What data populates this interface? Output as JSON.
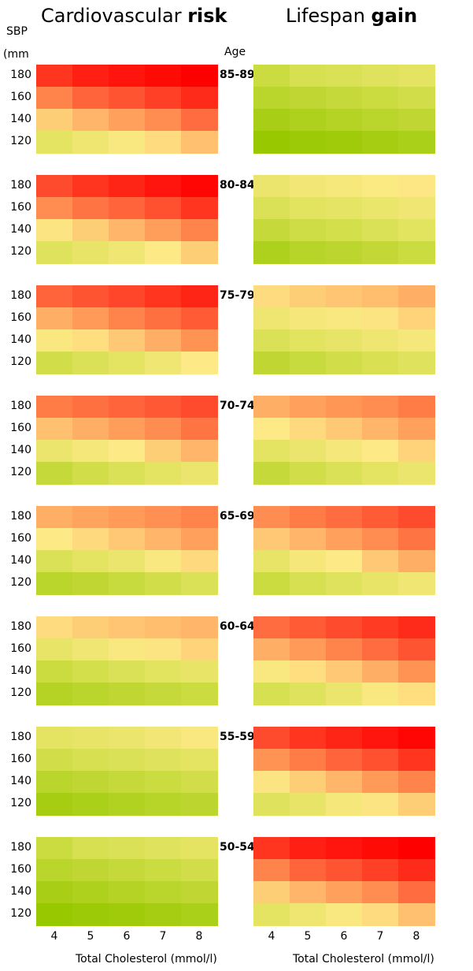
{
  "chart_data": {
    "type": "heatmap",
    "panels": [
      {
        "title_main": "Cardiovascular ",
        "title_bold": "risk",
        "xlabel": "Total Cholesterol (mmol/l)"
      },
      {
        "title_main": "Lifespan ",
        "title_bold": "gain",
        "xlabel": "Total Cholesterol (mmol/l)"
      }
    ],
    "ylabel_line1": "SBP",
    "ylabel_line2": "(mm",
    "age_header": "Age",
    "x_categories": [
      "4",
      "5",
      "6",
      "7",
      "8"
    ],
    "y_categories": [
      "180",
      "160",
      "140",
      "120"
    ],
    "colorscale": {
      "low": "#97c800",
      "mid": "#fde985",
      "high": "#ff0000",
      "value_range": [
        0,
        1
      ]
    },
    "groups": [
      {
        "age": "85-89",
        "risk": [
          [
            0.9,
            0.94,
            0.96,
            0.98,
            1
          ],
          [
            0.72,
            0.8,
            0.84,
            0.88,
            0.92
          ],
          [
            0.5,
            0.58,
            0.64,
            0.7,
            0.78
          ],
          [
            0.28,
            0.33,
            0.38,
            0.45,
            0.55
          ]
        ],
        "gain": [
          [
            0.18,
            0.22,
            0.24,
            0.26,
            0.28
          ],
          [
            0.12,
            0.14,
            0.16,
            0.18,
            0.2
          ],
          [
            0.06,
            0.08,
            0.1,
            0.12,
            0.14
          ],
          [
            0,
            0.02,
            0.03,
            0.05,
            0.07
          ]
        ]
      },
      {
        "age": "80-84",
        "risk": [
          [
            0.86,
            0.9,
            0.93,
            0.96,
            0.99
          ],
          [
            0.7,
            0.76,
            0.8,
            0.85,
            0.9
          ],
          [
            0.42,
            0.5,
            0.58,
            0.65,
            0.72
          ],
          [
            0.26,
            0.3,
            0.34,
            0.4,
            0.5
          ]
        ],
        "gain": [
          [
            0.32,
            0.35,
            0.37,
            0.39,
            0.41
          ],
          [
            0.24,
            0.27,
            0.29,
            0.31,
            0.34
          ],
          [
            0.16,
            0.19,
            0.21,
            0.24,
            0.27
          ],
          [
            0.08,
            0.11,
            0.13,
            0.15,
            0.18
          ]
        ]
      },
      {
        "age": "75-79",
        "risk": [
          [
            0.8,
            0.84,
            0.87,
            0.9,
            0.93
          ],
          [
            0.6,
            0.66,
            0.72,
            0.77,
            0.82
          ],
          [
            0.38,
            0.44,
            0.52,
            0.6,
            0.68
          ],
          [
            0.2,
            0.24,
            0.28,
            0.34,
            0.4
          ]
        ],
        "gain": [
          [
            0.45,
            0.5,
            0.53,
            0.56,
            0.6
          ],
          [
            0.33,
            0.36,
            0.38,
            0.42,
            0.48
          ],
          [
            0.24,
            0.27,
            0.3,
            0.33,
            0.36
          ],
          [
            0.14,
            0.17,
            0.2,
            0.23,
            0.26
          ]
        ]
      },
      {
        "age": "70-74",
        "risk": [
          [
            0.74,
            0.77,
            0.8,
            0.83,
            0.86
          ],
          [
            0.55,
            0.6,
            0.65,
            0.7,
            0.76
          ],
          [
            0.32,
            0.36,
            0.4,
            0.5,
            0.58
          ],
          [
            0.16,
            0.2,
            0.24,
            0.28,
            0.32
          ]
        ],
        "gain": [
          [
            0.6,
            0.64,
            0.67,
            0.7,
            0.74
          ],
          [
            0.4,
            0.46,
            0.52,
            0.58,
            0.64
          ],
          [
            0.28,
            0.32,
            0.36,
            0.4,
            0.48
          ],
          [
            0.16,
            0.2,
            0.24,
            0.28,
            0.32
          ]
        ]
      },
      {
        "age": "65-69",
        "risk": [
          [
            0.6,
            0.63,
            0.66,
            0.69,
            0.72
          ],
          [
            0.4,
            0.46,
            0.52,
            0.58,
            0.64
          ],
          [
            0.24,
            0.28,
            0.32,
            0.38,
            0.46
          ],
          [
            0.12,
            0.14,
            0.17,
            0.2,
            0.24
          ]
        ],
        "gain": [
          [
            0.7,
            0.74,
            0.78,
            0.82,
            0.86
          ],
          [
            0.52,
            0.58,
            0.64,
            0.7,
            0.76
          ],
          [
            0.3,
            0.36,
            0.4,
            0.52,
            0.6
          ],
          [
            0.18,
            0.22,
            0.26,
            0.3,
            0.34
          ]
        ]
      },
      {
        "age": "60-64",
        "risk": [
          [
            0.45,
            0.5,
            0.53,
            0.56,
            0.58
          ],
          [
            0.3,
            0.34,
            0.38,
            0.42,
            0.48
          ],
          [
            0.18,
            0.21,
            0.24,
            0.27,
            0.3
          ],
          [
            0.1,
            0.12,
            0.14,
            0.16,
            0.18
          ]
        ],
        "gain": [
          [
            0.78,
            0.82,
            0.86,
            0.89,
            0.92
          ],
          [
            0.6,
            0.66,
            0.72,
            0.78,
            0.84
          ],
          [
            0.38,
            0.44,
            0.52,
            0.6,
            0.68
          ],
          [
            0.22,
            0.26,
            0.32,
            0.38,
            0.44
          ]
        ]
      },
      {
        "age": "55-59",
        "risk": [
          [
            0.28,
            0.3,
            0.32,
            0.35,
            0.38
          ],
          [
            0.2,
            0.22,
            0.24,
            0.26,
            0.28
          ],
          [
            0.12,
            0.14,
            0.16,
            0.18,
            0.2
          ],
          [
            0.05,
            0.07,
            0.09,
            0.11,
            0.13
          ]
        ],
        "gain": [
          [
            0.86,
            0.9,
            0.93,
            0.96,
            0.99
          ],
          [
            0.68,
            0.74,
            0.8,
            0.85,
            0.9
          ],
          [
            0.42,
            0.5,
            0.58,
            0.66,
            0.72
          ],
          [
            0.26,
            0.3,
            0.36,
            0.42,
            0.5
          ]
        ]
      },
      {
        "age": "50-54",
        "risk": [
          [
            0.18,
            0.22,
            0.24,
            0.26,
            0.28
          ],
          [
            0.12,
            0.14,
            0.16,
            0.18,
            0.2
          ],
          [
            0.06,
            0.08,
            0.1,
            0.12,
            0.14
          ],
          [
            0,
            0.02,
            0.03,
            0.05,
            0.07
          ]
        ],
        "gain": [
          [
            0.9,
            0.94,
            0.96,
            0.98,
            1
          ],
          [
            0.72,
            0.8,
            0.84,
            0.88,
            0.92
          ],
          [
            0.5,
            0.58,
            0.64,
            0.7,
            0.78
          ],
          [
            0.28,
            0.33,
            0.38,
            0.45,
            0.55
          ]
        ]
      }
    ]
  }
}
